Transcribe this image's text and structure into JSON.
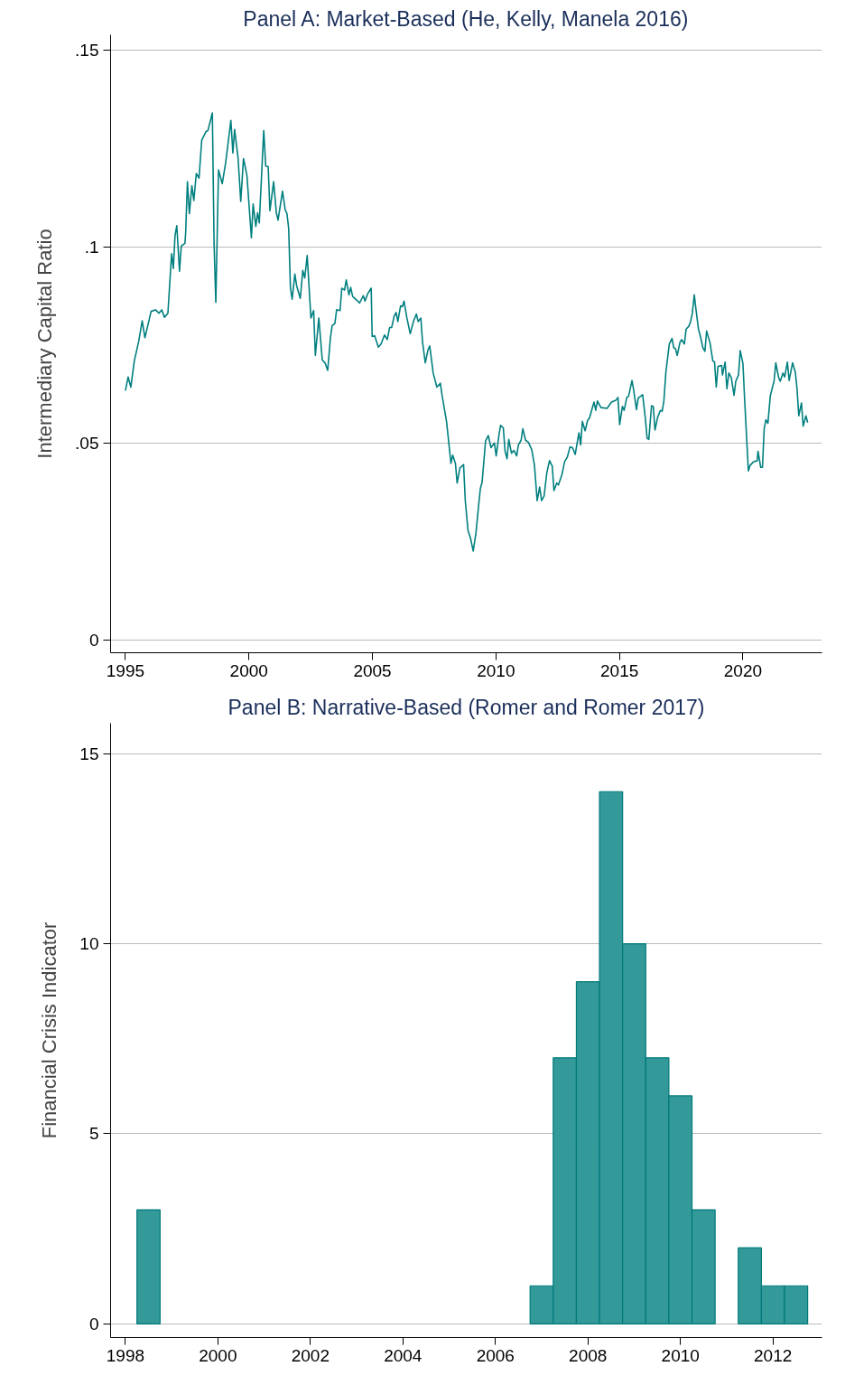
{
  "chart_data": [
    {
      "type": "line",
      "title": "Panel A: Market-Based (He, Kelly, Manela 2016)",
      "ylabel": "Intermediary Capital Ratio",
      "grid": "y",
      "line_style": "solid",
      "xlim": [
        1994.4,
        2023.2
      ],
      "xticks": [
        1995,
        2000,
        2005,
        2010,
        2015,
        2020
      ],
      "ylim": [
        -0.0033,
        0.154
      ],
      "yticks": [
        {
          "value": 0,
          "label": "0"
        },
        {
          "value": 0.05,
          "label": ".05"
        },
        {
          "value": 0.1,
          "label": ".1"
        },
        {
          "value": 0.15,
          "label": ".15"
        }
      ],
      "series": [
        {
          "color": "#007f7f",
          "x": [
            1995.0,
            1995.11,
            1995.22,
            1995.36,
            1995.54,
            1995.68,
            1995.79,
            1995.9,
            1996.04,
            1996.22,
            1996.36,
            1996.47,
            1996.58,
            1996.72,
            1996.87,
            1996.94,
            1997.01,
            1997.08,
            1997.19,
            1997.26,
            1997.41,
            1997.44,
            1997.51,
            1997.59,
            1997.69,
            1997.77,
            1997.87,
            1997.98,
            1998.09,
            1998.27,
            1998.34,
            1998.52,
            1998.59,
            1998.66,
            1998.77,
            1998.92,
            1999.06,
            1999.27,
            1999.35,
            1999.42,
            1999.56,
            1999.67,
            1999.78,
            1999.92,
            2000.1,
            2000.17,
            2000.28,
            2000.35,
            2000.42,
            2000.6,
            2000.68,
            2000.78,
            2000.85,
            2001.0,
            2001.11,
            2001.18,
            2001.36,
            2001.47,
            2001.54,
            2001.61,
            2001.68,
            2001.75,
            2001.86,
            2001.93,
            2002.08,
            2002.18,
            2002.26,
            2002.36,
            2002.51,
            2002.62,
            2002.69,
            2002.83,
            2002.97,
            2003.08,
            2003.19,
            2003.3,
            2003.37,
            2003.48,
            2003.55,
            2003.69,
            2003.76,
            2003.87,
            2003.94,
            2004.05,
            2004.12,
            2004.2,
            2004.41,
            2004.48,
            2004.63,
            2004.7,
            2004.81,
            2004.95,
            2004.99,
            2005.09,
            2005.24,
            2005.35,
            2005.49,
            2005.6,
            2005.7,
            2005.78,
            2005.88,
            2005.96,
            2006.03,
            2006.14,
            2006.21,
            2006.28,
            2006.39,
            2006.53,
            2006.67,
            2006.78,
            2006.85,
            2006.96,
            2007.03,
            2007.14,
            2007.25,
            2007.32,
            2007.46,
            2007.61,
            2007.75,
            2007.82,
            2008.0,
            2008.18,
            2008.25,
            2008.36,
            2008.43,
            2008.54,
            2008.69,
            2008.76,
            2008.87,
            2008.97,
            2009.08,
            2009.19,
            2009.3,
            2009.37,
            2009.44,
            2009.58,
            2009.69,
            2009.8,
            2009.94,
            2010.01,
            2010.12,
            2010.19,
            2010.3,
            2010.37,
            2010.45,
            2010.52,
            2010.63,
            2010.73,
            2010.84,
            2010.91,
            2011.02,
            2011.09,
            2011.2,
            2011.31,
            2011.45,
            2011.56,
            2011.67,
            2011.77,
            2011.85,
            2011.95,
            2012.06,
            2012.17,
            2012.28,
            2012.35,
            2012.46,
            2012.53,
            2012.67,
            2012.78,
            2012.89,
            2013.0,
            2013.1,
            2013.21,
            2013.36,
            2013.43,
            2013.5,
            2013.61,
            2013.71,
            2013.79,
            2013.97,
            2014.04,
            2014.11,
            2014.25,
            2014.5,
            2014.68,
            2014.86,
            2014.94,
            2015.01,
            2015.12,
            2015.19,
            2015.3,
            2015.37,
            2015.51,
            2015.58,
            2015.69,
            2015.76,
            2015.94,
            2016.05,
            2016.12,
            2016.19,
            2016.3,
            2016.37,
            2016.44,
            2016.55,
            2016.66,
            2016.73,
            2016.8,
            2016.88,
            2017.02,
            2017.13,
            2017.2,
            2017.27,
            2017.34,
            2017.45,
            2017.52,
            2017.63,
            2017.7,
            2017.81,
            2017.88,
            2017.95,
            2018.03,
            2018.1,
            2018.2,
            2018.28,
            2018.38,
            2018.46,
            2018.53,
            2018.67,
            2018.78,
            2018.85,
            2018.92,
            2018.99,
            2019.14,
            2019.17,
            2019.28,
            2019.35,
            2019.43,
            2019.53,
            2019.64,
            2019.71,
            2019.82,
            2019.89,
            2020.0,
            2020.07,
            2020.22,
            2020.29,
            2020.43,
            2020.58,
            2020.61,
            2020.72,
            2020.79,
            2020.86,
            2020.93,
            2021.01,
            2021.11,
            2021.26,
            2021.33,
            2021.44,
            2021.51,
            2021.62,
            2021.69,
            2021.8,
            2021.87,
            2022.01,
            2022.12,
            2022.19,
            2022.26,
            2022.37,
            2022.44,
            2022.55,
            2022.62
          ],
          "values": [
            0.0634,
            0.0669,
            0.0643,
            0.071,
            0.076,
            0.0812,
            0.0769,
            0.0798,
            0.0836,
            0.084,
            0.0831,
            0.084,
            0.0821,
            0.0831,
            0.0983,
            0.0945,
            0.103,
            0.1054,
            0.0938,
            0.1002,
            0.1009,
            0.1037,
            0.1166,
            0.1085,
            0.1156,
            0.1118,
            0.1187,
            0.1175,
            0.1272,
            0.1294,
            0.1296,
            0.1341,
            0.1007,
            0.0859,
            0.1196,
            0.1161,
            0.1215,
            0.1322,
            0.1239,
            0.1299,
            0.1227,
            0.1116,
            0.1225,
            0.1182,
            0.1023,
            0.1109,
            0.1052,
            0.1087,
            0.1061,
            0.1296,
            0.1206,
            0.1204,
            0.1092,
            0.1166,
            0.1087,
            0.1068,
            0.1142,
            0.1094,
            0.1085,
            0.1047,
            0.0897,
            0.0867,
            0.0931,
            0.0902,
            0.0869,
            0.094,
            0.0921,
            0.0978,
            0.0819,
            0.0838,
            0.0724,
            0.0819,
            0.0712,
            0.0705,
            0.0686,
            0.0769,
            0.08,
            0.0805,
            0.084,
            0.0838,
            0.0895,
            0.089,
            0.0916,
            0.0878,
            0.0897,
            0.0874,
            0.0862,
            0.0857,
            0.0876,
            0.0862,
            0.0881,
            0.0895,
            0.0772,
            0.0774,
            0.0745,
            0.0753,
            0.0776,
            0.0764,
            0.0795,
            0.0795,
            0.0824,
            0.0833,
            0.081,
            0.085,
            0.0848,
            0.0862,
            0.0821,
            0.0779,
            0.0812,
            0.0829,
            0.081,
            0.0819,
            0.0757,
            0.0705,
            0.0738,
            0.0748,
            0.0679,
            0.0643,
            0.0653,
            0.0622,
            0.0556,
            0.0449,
            0.047,
            0.0449,
            0.0399,
            0.0437,
            0.0446,
            0.0354,
            0.0278,
            0.0259,
            0.0226,
            0.0271,
            0.0342,
            0.0385,
            0.0401,
            0.0506,
            0.052,
            0.0489,
            0.0501,
            0.0468,
            0.052,
            0.0546,
            0.0539,
            0.048,
            0.0461,
            0.051,
            0.0475,
            0.0482,
            0.0468,
            0.0496,
            0.0508,
            0.0537,
            0.0508,
            0.0503,
            0.0484,
            0.0444,
            0.0354,
            0.0389,
            0.0354,
            0.0366,
            0.0425,
            0.0456,
            0.0442,
            0.038,
            0.0399,
            0.0394,
            0.042,
            0.0453,
            0.0465,
            0.0491,
            0.0489,
            0.0472,
            0.0527,
            0.0496,
            0.0556,
            0.0532,
            0.0558,
            0.0565,
            0.0605,
            0.0584,
            0.0608,
            0.0591,
            0.0589,
            0.0605,
            0.061,
            0.0617,
            0.0548,
            0.0594,
            0.0584,
            0.0617,
            0.062,
            0.066,
            0.0634,
            0.0586,
            0.0615,
            0.0624,
            0.0563,
            0.0513,
            0.051,
            0.0596,
            0.0594,
            0.0534,
            0.0567,
            0.0584,
            0.0582,
            0.0608,
            0.0681,
            0.0753,
            0.0767,
            0.0743,
            0.0741,
            0.0724,
            0.0757,
            0.0764,
            0.0753,
            0.0791,
            0.0798,
            0.081,
            0.0831,
            0.0878,
            0.084,
            0.0791,
            0.0772,
            0.0743,
            0.0734,
            0.0786,
            0.0755,
            0.071,
            0.0707,
            0.0643,
            0.0696,
            0.0698,
            0.0674,
            0.0707,
            0.0639,
            0.0679,
            0.0667,
            0.0622,
            0.0658,
            0.0674,
            0.0736,
            0.0703,
            0.061,
            0.043,
            0.0444,
            0.0453,
            0.0456,
            0.048,
            0.0439,
            0.0439,
            0.0537,
            0.056,
            0.0551,
            0.0622,
            0.0658,
            0.0705,
            0.0669,
            0.0658,
            0.0679,
            0.0669,
            0.0707,
            0.066,
            0.0705,
            0.0681,
            0.0639,
            0.057,
            0.0603,
            0.0544,
            0.057,
            0.0553
          ]
        }
      ]
    },
    {
      "type": "histogram",
      "title": "Panel B: Narrative-Based (Romer and Romer 2017)",
      "ylabel": "Financial Crisis Indicator",
      "grid": "y",
      "xlim": [
        1997.68,
        2013.06
      ],
      "xticks": [
        1998,
        2000,
        2002,
        2004,
        2006,
        2008,
        2010,
        2012
      ],
      "ylim": [
        -0.36,
        15.8
      ],
      "yticks": [
        0,
        5,
        10,
        15
      ],
      "bins": [
        1998.25,
        1998.75,
        1999.25,
        1999.75,
        2000.25,
        2000.75,
        2001.25,
        2001.75,
        2002.25,
        2002.75,
        2003.25,
        2003.75,
        2004.25,
        2004.75,
        2005.25,
        2005.75,
        2006.25,
        2006.75,
        2007.25,
        2007.75,
        2008.25,
        2008.75,
        2009.25,
        2009.75,
        2010.25,
        2010.75,
        2011.25,
        2011.75,
        2012.25,
        2012.75
      ],
      "values": [
        3,
        0,
        0,
        0,
        0,
        0,
        0,
        0,
        0,
        0,
        0,
        0,
        0,
        0,
        0,
        0,
        0,
        1,
        7,
        9,
        14,
        10,
        7,
        6,
        3,
        0,
        2,
        1,
        1
      ],
      "color": "#339999"
    }
  ]
}
